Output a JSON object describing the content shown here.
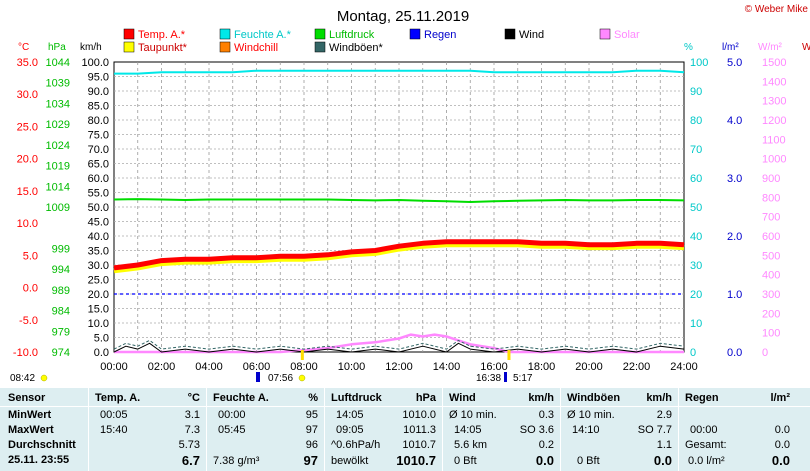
{
  "header": {
    "title": "Montag, 25.11.2019",
    "credit": "© Weber Mike"
  },
  "units": {
    "temp": "°C",
    "pressure": "hPa",
    "speed": "km/h",
    "humidity": "%",
    "rain": "l/m²",
    "solar": "W/m²",
    "right_edge": "W"
  },
  "legend": [
    {
      "label": "Temp. A.*",
      "color": "#ff0000"
    },
    {
      "label": "Feuchte A.*",
      "color": "#00e8e8"
    },
    {
      "label": "Luftdruck",
      "color": "#00dd00"
    },
    {
      "label": "Regen",
      "color": "#0000ff"
    },
    {
      "label": "Wind",
      "color": "#000000"
    },
    {
      "label": "Solar",
      "color": "#ff88ff"
    },
    {
      "label": "Taupunkt*",
      "color": "#ffff00"
    },
    {
      "label": "Windchill",
      "color": "#ff8000"
    },
    {
      "label": "Windböen*",
      "color": "#336666"
    }
  ],
  "sun": {
    "sunrise": "07:56",
    "sunset": "16:38",
    "moonrise": "08:42",
    "moonset": "5:17"
  },
  "chart_data": {
    "type": "line",
    "title": "Montag, 25.11.2019",
    "x_ticks": [
      "00:00",
      "02:00",
      "04:00",
      "06:00",
      "08:00",
      "10:00",
      "12:00",
      "14:00",
      "16:00",
      "18:00",
      "20:00",
      "22:00",
      "24:00"
    ],
    "x_range_hours": [
      0,
      24
    ],
    "axes": {
      "temp_ticks": [
        "35.0",
        "30.0",
        "25.0",
        "20.0",
        "15.0",
        "10.0",
        "5.0",
        "0.0",
        "-5.0",
        "-10.0"
      ],
      "pressure_ticks": [
        "1044",
        "1039",
        "1034",
        "1029",
        "1024",
        "1019",
        "1014",
        "1009",
        "999",
        "994",
        "989",
        "984",
        "979",
        "974"
      ],
      "speed_ticks": [
        "100.0",
        "95.0",
        "90.0",
        "85.0",
        "80.0",
        "75.0",
        "70.0",
        "65.0",
        "60.0",
        "55.0",
        "50.0",
        "45.0",
        "40.0",
        "35.0",
        "30.0",
        "25.0",
        "20.0",
        "15.0",
        "10.0",
        "5.0",
        "0.0"
      ],
      "humidity_ticks": [
        "100",
        "90",
        "80",
        "70",
        "60",
        "50",
        "40",
        "30",
        "20",
        "10",
        "0"
      ],
      "rain_ticks": [
        "5.0",
        "4.0",
        "3.0",
        "2.0",
        "1.0",
        "0.0"
      ],
      "solar_ticks": [
        "1500",
        "1400",
        "1300",
        "1200",
        "1100",
        "1000",
        "900",
        "800",
        "700",
        "600",
        "500",
        "400",
        "300",
        "200",
        "100",
        "0"
      ],
      "speed_range": [
        0,
        100
      ],
      "grid": true
    },
    "series": [
      {
        "name": "Temp. A.*",
        "axis": "speed",
        "color": "#ff0000",
        "x": [
          0,
          1,
          2,
          3,
          4,
          5,
          6,
          7,
          8,
          9,
          10,
          11,
          12,
          13,
          14,
          15,
          16,
          17,
          18,
          19,
          20,
          21,
          22,
          23,
          24
        ],
        "values": [
          29,
          30,
          31.5,
          32,
          32,
          32.5,
          32.5,
          33,
          33,
          33.5,
          34.5,
          35,
          36.5,
          37.5,
          38,
          38,
          38,
          38,
          37.5,
          37.5,
          37,
          37,
          37.5,
          37.5,
          37
        ]
      },
      {
        "name": "Taupunkt*",
        "axis": "speed",
        "color": "#ffff00",
        "x": [
          0,
          1,
          2,
          3,
          4,
          5,
          6,
          7,
          8,
          9,
          10,
          11,
          12,
          13,
          14,
          15,
          16,
          17,
          18,
          19,
          20,
          21,
          22,
          23,
          24
        ],
        "values": [
          28,
          29,
          30.5,
          31,
          31,
          31.5,
          31.5,
          32,
          32,
          32.5,
          33.5,
          34,
          35.5,
          36.5,
          37,
          37,
          37,
          37,
          36.5,
          36.5,
          36,
          36,
          36.5,
          36.5,
          36
        ]
      },
      {
        "name": "Feuchte A.*",
        "axis": "humidity",
        "color": "#00e8e8",
        "x": [
          0,
          1,
          2,
          3,
          4,
          5,
          6,
          7,
          8,
          9,
          10,
          11,
          12,
          13,
          14,
          15,
          16,
          17,
          18,
          19,
          20,
          21,
          22,
          23,
          24
        ],
        "values": [
          96,
          96,
          96.5,
          96.5,
          96.5,
          96.5,
          97,
          97,
          97,
          97,
          97,
          97,
          97,
          97,
          97,
          97,
          96.5,
          96.5,
          96.5,
          96.5,
          96.5,
          96.5,
          97,
          97,
          96.5
        ]
      },
      {
        "name": "Luftdruck",
        "axis": "pressure",
        "color": "#00dd00",
        "x": [
          0,
          1,
          2,
          3,
          4,
          5,
          6,
          7,
          8,
          9,
          10,
          11,
          12,
          13,
          14,
          15,
          16,
          17,
          18,
          19,
          20,
          21,
          22,
          23,
          24
        ],
        "values": [
          1010.8,
          1010.9,
          1010.8,
          1010.7,
          1010.8,
          1010.8,
          1010.8,
          1010.8,
          1010.8,
          1010.8,
          1010.7,
          1010.6,
          1010.7,
          1010.5,
          1010.4,
          1010.2,
          1010.4,
          1010.5,
          1010.6,
          1010.7,
          1010.6,
          1010.6,
          1010.7,
          1010.7,
          1010.6
        ]
      },
      {
        "name": "Regen",
        "axis": "rain",
        "color": "#0000ff",
        "x": [
          0,
          24
        ],
        "values": [
          1.0,
          1.0
        ]
      },
      {
        "name": "Solar",
        "axis": "solar",
        "color": "#ff88ff",
        "x": [
          0,
          7,
          8,
          9,
          10,
          11,
          11.5,
          12,
          12.5,
          13,
          13.5,
          14,
          14.5,
          15,
          15.5,
          16,
          16.6,
          17,
          24
        ],
        "values": [
          0,
          0,
          10,
          20,
          40,
          50,
          60,
          70,
          90,
          80,
          90,
          80,
          60,
          40,
          30,
          20,
          0,
          0,
          0
        ]
      },
      {
        "name": "Wind",
        "axis": "speed",
        "color": "#000000",
        "x": [
          0,
          0.5,
          1,
          1.5,
          2,
          3,
          4,
          5,
          6,
          7,
          8,
          9,
          10,
          11,
          12,
          13,
          14,
          14.5,
          15,
          16,
          17,
          18,
          19,
          20,
          21,
          22,
          23,
          24
        ],
        "values": [
          0,
          2,
          1,
          3,
          0,
          1,
          0,
          1,
          0,
          1,
          0,
          1,
          0,
          1,
          0,
          2,
          0,
          3,
          1,
          0,
          1,
          0,
          1,
          0,
          1,
          0,
          2,
          1
        ]
      },
      {
        "name": "Windböen*",
        "axis": "speed",
        "color": "#336666",
        "x": [
          0,
          0.5,
          1,
          1.5,
          2,
          3,
          4,
          5,
          6,
          7,
          8,
          9,
          10,
          11,
          12,
          13,
          14,
          14.5,
          15,
          16,
          17,
          18,
          19,
          20,
          21,
          22,
          23,
          24
        ],
        "values": [
          1,
          3,
          2,
          4,
          1,
          2,
          1,
          2,
          1,
          2,
          1,
          2,
          1,
          2,
          1,
          3,
          1,
          4,
          2,
          1,
          2,
          1,
          2,
          1,
          2,
          1,
          3,
          2
        ]
      }
    ]
  },
  "stats": {
    "headers": {
      "sensor": "Sensor",
      "temp": "Temp. A.",
      "temp_unit": "°C",
      "hum": "Feuchte A.",
      "hum_unit": "%",
      "press": "Luftdruck",
      "press_unit": "hPa",
      "wind": "Wind",
      "wind_unit": "km/h",
      "gust": "Windböen",
      "gust_unit": "km/h",
      "rain": "Regen",
      "rain_unit": "l/m²"
    },
    "rows": {
      "min_label": "MinWert",
      "max_label": "MaxWert",
      "avg_label": "Durchschnitt",
      "now_label": "25.11. 23:55"
    },
    "temp": {
      "min_time": "00:05",
      "min": "3.1",
      "max_time": "15:40",
      "max": "7.3",
      "avg": "5.73",
      "now": "6.7"
    },
    "hum": {
      "min_time": "00:00",
      "min": "95",
      "max_time": "05:45",
      "max": "97",
      "avg": "96",
      "now_extra": "7.38 g/m³",
      "now": "97"
    },
    "press": {
      "min_time": "14:05",
      "min": "1010.0",
      "max_time": "09:05",
      "max": "1011.3",
      "trend_label": "^0.6hPa/h",
      "trend": "1010.7",
      "now_label": "bewölkt",
      "now": "1010.7"
    },
    "wind": {
      "min_label": "Ø 10 min.",
      "min": "0.3",
      "max_time": "14:05",
      "max": "SO 3.6",
      "dist_label": "5.6 km",
      "dist": "0.2",
      "now_label": "0 Bft",
      "now": "0.0"
    },
    "gust": {
      "min_label": "Ø 10 min.",
      "min": "2.9",
      "max_time": "14:10",
      "max": "SO 7.7",
      "avg": "1.1",
      "now_label": "0 Bft",
      "now": "0.0"
    },
    "rain": {
      "max_time": "00:00",
      "max": "0.0",
      "total_label": "Gesamt:",
      "total": "0.0",
      "now_label": "0.0 l/m²",
      "now": "0.0"
    }
  }
}
